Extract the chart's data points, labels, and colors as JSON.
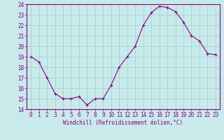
{
  "x": [
    0,
    1,
    2,
    3,
    4,
    5,
    6,
    7,
    8,
    9,
    10,
    11,
    12,
    13,
    14,
    15,
    16,
    17,
    18,
    19,
    20,
    21,
    22,
    23
  ],
  "y": [
    19,
    18.5,
    17,
    15.5,
    15,
    15,
    15.2,
    14.4,
    15,
    15,
    16.3,
    18,
    19,
    20,
    22,
    23.2,
    23.8,
    23.7,
    23.3,
    22.3,
    21,
    20.5,
    19.3,
    19.2
  ],
  "line_color": "#880088",
  "marker": "+",
  "bg_color": "#c8eaea",
  "grid_color": "#a0cccc",
  "xlabel": "Windchill (Refroidissement éolien,°C)",
  "xlim": [
    -0.5,
    23.5
  ],
  "ylim": [
    14,
    24
  ],
  "yticks": [
    14,
    15,
    16,
    17,
    18,
    19,
    20,
    21,
    22,
    23,
    24
  ],
  "xticks": [
    0,
    1,
    2,
    3,
    4,
    5,
    6,
    7,
    8,
    9,
    10,
    11,
    12,
    13,
    14,
    15,
    16,
    17,
    18,
    19,
    20,
    21,
    22,
    23
  ],
  "tick_fontsize": 5.5,
  "xlabel_fontsize": 5.5
}
